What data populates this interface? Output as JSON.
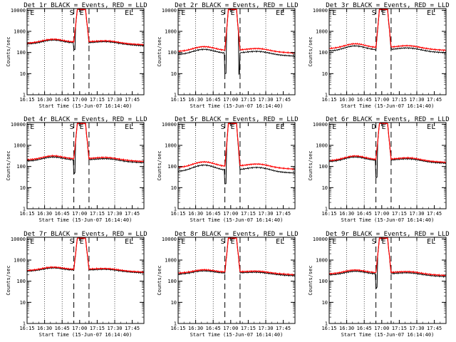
{
  "chart_data": [
    {
      "type": "line",
      "title": "Det 1r BLACK = Events, RED = LLD",
      "events_base": 280,
      "lld_base": 310,
      "hump_events": 120,
      "hump_lld": 130,
      "dip_events": [
        140,
        null
      ],
      "flags": [
        "E",
        "S",
        "E",
        "L"
      ]
    },
    {
      "type": "line",
      "title": "Det 2r BLACK = Events, RED = LLD",
      "events_base": 90,
      "lld_base": 125,
      "hump_events": 55,
      "hump_lld": 70,
      "dip_events": [
        10,
        10
      ],
      "flags": [
        "E",
        "S",
        "E",
        "E"
      ]
    },
    {
      "type": "line",
      "title": "Det 3r BLACK = Events, RED = LLD",
      "events_base": 130,
      "lld_base": 170,
      "hump_events": 80,
      "hump_lld": 95,
      "dip_events": [
        null,
        null
      ],
      "flags": [
        "E",
        "S",
        "E",
        "L"
      ]
    },
    {
      "type": "line",
      "title": "Det 4r BLACK = Events, RED = LLD",
      "events_base": 200,
      "lld_base": 230,
      "hump_events": 90,
      "hump_lld": 100,
      "dip_events": [
        50,
        null
      ],
      "flags": [
        "E",
        "S",
        "E",
        "L"
      ]
    },
    {
      "type": "line",
      "title": "Det 5r BLACK = Events, RED = LLD",
      "events_base": 65,
      "lld_base": 100,
      "hump_events": 55,
      "hump_lld": 70,
      "dip_events": [
        15,
        null
      ],
      "flags": [
        "E",
        "S",
        "E",
        "E"
      ]
    },
    {
      "type": "line",
      "title": "Det 6r BLACK = Events, RED = LLD",
      "events_base": 190,
      "lld_base": 210,
      "hump_events": 100,
      "hump_lld": 115,
      "dip_events": [
        30,
        null
      ],
      "flags": [
        "E",
        "D",
        "E",
        "L"
      ]
    },
    {
      "type": "line",
      "title": "Det 7r BLACK = Events, RED = LLD",
      "events_base": 330,
      "lld_base": 360,
      "hump_events": 110,
      "hump_lld": 120,
      "dip_events": [
        null,
        null
      ],
      "flags": [
        "E",
        "S",
        "E",
        "L"
      ]
    },
    {
      "type": "line",
      "title": "Det 8r BLACK = Events, RED = LLD",
      "events_base": 240,
      "lld_base": 270,
      "hump_events": 80,
      "hump_lld": 90,
      "dip_events": [
        null,
        null
      ],
      "flags": [
        "E",
        "S",
        "E",
        "L"
      ]
    },
    {
      "type": "line",
      "title": "Det 9r BLACK = Events, RED = LLD",
      "events_base": 220,
      "lld_base": 250,
      "hump_events": 85,
      "hump_lld": 100,
      "dip_events": [
        50,
        null
      ],
      "flags": [
        "E",
        "S",
        "E",
        "L"
      ]
    }
  ],
  "shared": {
    "x_ticks": [
      "16:15",
      "16:30",
      "16:45",
      "17:00",
      "17:15",
      "17:30",
      "17:45"
    ],
    "y_ticks": [
      "1",
      "10",
      "100",
      "1000",
      "10000"
    ],
    "ylabel": "Counts/sec",
    "xlabel": "Start Time (15-Jun-07 16:14:40)",
    "x_range_min": [
      0,
      100
    ],
    "y_range": [
      1,
      12000
    ],
    "y_scale": "log",
    "flag_times_min": [
      2,
      40,
      83,
      85
    ],
    "saa_times_min": [
      40,
      53
    ],
    "dotted_times_min": [
      15,
      30,
      75
    ],
    "events_color": "#000000",
    "lld_color": "#ff0000"
  }
}
